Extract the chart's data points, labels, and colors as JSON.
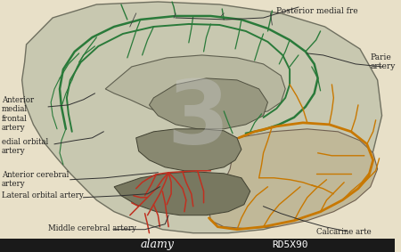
{
  "bg_color": "#e8e0c8",
  "brain_color": "#c8c8b0",
  "brain_inner_color": "#a0a890",
  "green_artery_color": "#2a7a3a",
  "orange_artery_color": "#c87800",
  "red_artery_color": "#c03020",
  "text_color": "#202020",
  "watermark_color": "#b0b0b0",
  "labels": {
    "posterior_medial": "Posterior medial fre",
    "parietal": "Parie\nartery",
    "anterior_medial": "Anterior\nmedial\nfrontal\nartery",
    "medial_orbital": "edial orbital\nartery",
    "anterior_cerebral": "Anterior cerebral\nartery",
    "lateral_orbital": "Lateral orbital artery",
    "middle_cerebral": "Middle cerebral artery",
    "calcarine": "Calcarine arte"
  },
  "title": "RD5X90",
  "alamy_text": "alamy",
  "figsize": [
    4.5,
    2.83
  ],
  "dpi": 100
}
